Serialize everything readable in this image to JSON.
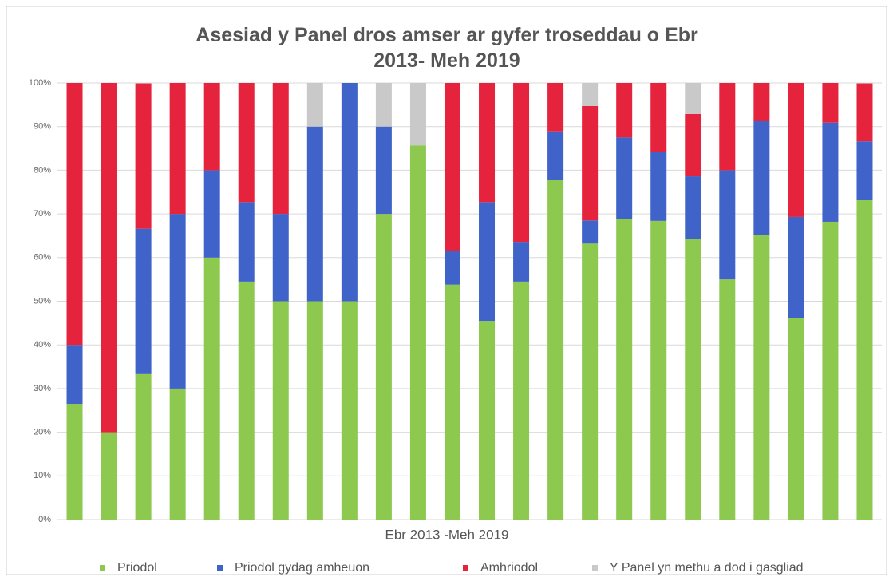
{
  "chart_data": {
    "type": "stacked_bar_100",
    "title": "Asesiad y Panel dros amser ar gyfer troseddau o Ebr 2013- Meh 2019",
    "x_label": "Ebr 2013 -Meh 2019",
    "categories": [
      null,
      null,
      null,
      null,
      null,
      null,
      null,
      null,
      null,
      null,
      null,
      null,
      null,
      null,
      null,
      null,
      null,
      null,
      null,
      null,
      null,
      null,
      null,
      null
    ],
    "series": [
      {
        "name": "Priodol",
        "color": "#8dc84f",
        "values": [
          26.5,
          20,
          33.3,
          30,
          60,
          54.5,
          50,
          50,
          50,
          70,
          85.7,
          53.8,
          45.5,
          54.5,
          77.8,
          63.2,
          68.8,
          68.4,
          64.3,
          55,
          65.2,
          46.2,
          68.2,
          73.3
        ]
      },
      {
        "name": "Priodol gydag amheuon",
        "color": "#3f63c8",
        "values": [
          13.5,
          0,
          33.3,
          40,
          20,
          18.2,
          20,
          40,
          50,
          20,
          0,
          7.7,
          27.2,
          9.1,
          11.1,
          5.3,
          18.7,
          15.8,
          14.3,
          25,
          26.1,
          23.1,
          22.7,
          13.3
        ]
      },
      {
        "name": "Amhriodol",
        "color": "#e6233c",
        "values": [
          60,
          80,
          33.3,
          30,
          20,
          27.3,
          30,
          0,
          0,
          0,
          0,
          38.5,
          27.3,
          36.4,
          11.1,
          26.2,
          12.5,
          15.8,
          14.3,
          20,
          8.7,
          30.7,
          9.1,
          13.3
        ]
      },
      {
        "name": "Y Panel yn methu a dod i gasgliad",
        "color": "#c9c9c9",
        "values": [
          0,
          0,
          0,
          0,
          0,
          0,
          0,
          10,
          0,
          10,
          14.3,
          0,
          0,
          0,
          0,
          5.3,
          0,
          0,
          7.1,
          0,
          0,
          0,
          0,
          0
        ]
      }
    ],
    "ylim": [
      0,
      100
    ],
    "yticks": [
      {
        "value": 0,
        "label": "0%"
      },
      {
        "value": 10,
        "label": "10%"
      },
      {
        "value": 20,
        "label": "20%"
      },
      {
        "value": 30,
        "label": "30%"
      },
      {
        "value": 40,
        "label": "40%"
      },
      {
        "value": 50,
        "label": "50%"
      },
      {
        "value": 60,
        "label": "60%"
      },
      {
        "value": 70,
        "label": "70%"
      },
      {
        "value": 80,
        "label": "80%"
      },
      {
        "value": 90,
        "label": "90%"
      },
      {
        "value": 100,
        "label": "100%"
      }
    ],
    "grid": true,
    "legend": "bottom"
  }
}
